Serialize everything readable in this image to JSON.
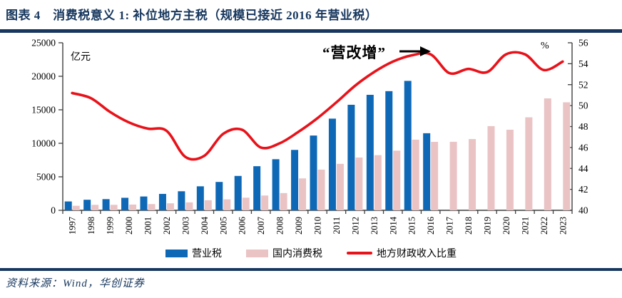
{
  "header": {
    "title": "图表 4　消费税意义 1: 补位地方主税（规模已接近 2016 年营业税）"
  },
  "footer": {
    "source": "资料来源：Wind，华创证券"
  },
  "colors": {
    "navy": "#17375E",
    "blue_bar": "#0E68B6",
    "pink_bar": "#EAC3C5",
    "red_line": "#E8121A",
    "axis": "#3F3F3F",
    "text": "#000000"
  },
  "chart_data": {
    "type": "bar",
    "title": "",
    "left_axis": {
      "unit": "亿元",
      "min": 0,
      "max": 25000,
      "step": 5000
    },
    "right_axis": {
      "unit": "%",
      "min": 40,
      "max": 56,
      "step": 2
    },
    "grid": false,
    "legend_position": "bottom",
    "categories": [
      "1997",
      "1998",
      "1999",
      "2000",
      "2001",
      "2002",
      "2003",
      "2004",
      "2005",
      "2006",
      "2007",
      "2008",
      "2009",
      "2010",
      "2011",
      "2012",
      "2013",
      "2014",
      "2015",
      "2016",
      "2017",
      "2018",
      "2019",
      "2020",
      "2021",
      "2022",
      "2023"
    ],
    "series": [
      {
        "name": "营业税",
        "type": "bar",
        "axis": "left",
        "color_key": "blue_bar",
        "values": [
          1324,
          1575,
          1669,
          1869,
          2064,
          2450,
          2844,
          3582,
          4232,
          5129,
          6582,
          7626,
          9014,
          11158,
          13679,
          15748,
          17233,
          17782,
          19313,
          11502,
          null,
          null,
          null,
          null,
          null,
          null,
          null
        ]
      },
      {
        "name": "国内消费税",
        "type": "bar",
        "axis": "left",
        "color_key": "pink_bar",
        "values": [
          678,
          815,
          821,
          858,
          930,
          1046,
          1182,
          1502,
          1634,
          1886,
          2207,
          2568,
          4761,
          6072,
          6936,
          7876,
          8231,
          8907,
          10542,
          10217,
          10225,
          10632,
          12562,
          12028,
          13881,
          16699,
          16118
        ]
      },
      {
        "name": "地方财政收入比重",
        "type": "line",
        "axis": "right",
        "color_key": "red_line",
        "values": [
          51.2,
          50.7,
          49.4,
          48.4,
          47.8,
          47.6,
          45.1,
          45.2,
          47.3,
          47.7,
          46.0,
          46.4,
          47.5,
          48.8,
          50.3,
          51.9,
          53.2,
          54.2,
          54.8,
          54.9,
          53.1,
          53.5,
          53.2,
          54.9,
          54.9,
          53.4,
          54.2
        ]
      }
    ],
    "annotation": {
      "text": "“营改增”",
      "arrow": "right-arrow"
    }
  }
}
